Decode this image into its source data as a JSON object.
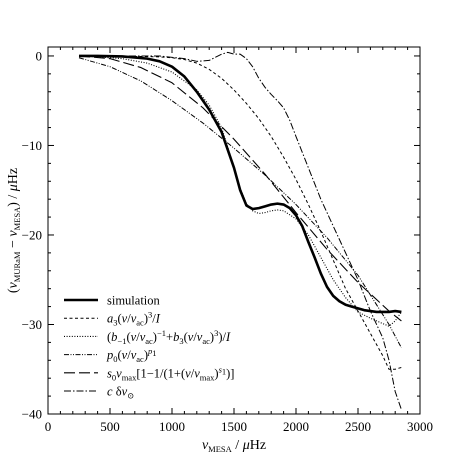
{
  "chart_data": {
    "type": "line",
    "xlabel": "ν_MESA / μHz",
    "ylabel": "(ν_MURaM − ν_MESA) / μHz",
    "xlim": [
      0,
      3000
    ],
    "ylim": [
      -40,
      1
    ],
    "x_ticks": [
      "0",
      "500",
      "1000",
      "1500",
      "2000",
      "2500",
      "3000"
    ],
    "y_ticks": [
      "0",
      "−10",
      "−20",
      "−30",
      "−40"
    ],
    "grid": false,
    "legend_position": "bottom-left",
    "legend": [
      "simulation",
      "a3(ν/νac)^3/I",
      "(b−1(ν/νac)^−1+b3(ν/νac)^3)/I",
      "p0(ν/νac)^p1",
      "s0νmax[1−1/(1+(ν/νmax)^s1)]",
      "c δν⊙"
    ],
    "series": [
      {
        "name": "simulation",
        "style": "solid-thick",
        "color": "#000000",
        "x": [
          250,
          400,
          600,
          800,
          900,
          1000,
          1100,
          1200,
          1300,
          1400,
          1450,
          1500,
          1550,
          1600,
          1650,
          1700,
          1750,
          1800,
          1850,
          1900,
          1950,
          2000,
          2050,
          2100,
          2150,
          2200,
          2250,
          2300,
          2350,
          2400,
          2450,
          2500,
          2550,
          2600,
          2650,
          2700,
          2750,
          2800,
          2850
        ],
        "y": [
          0,
          0,
          -0.05,
          -0.3,
          -0.6,
          -1.2,
          -2.3,
          -4.0,
          -6.0,
          -8.5,
          -10.5,
          -12.5,
          -15.0,
          -16.7,
          -17.1,
          -17.0,
          -16.8,
          -16.6,
          -16.5,
          -16.6,
          -17.0,
          -17.8,
          -19.0,
          -20.8,
          -22.5,
          -24.3,
          -25.8,
          -26.8,
          -27.4,
          -27.8,
          -28.0,
          -28.2,
          -28.4,
          -28.5,
          -28.6,
          -28.6,
          -28.6,
          -28.5,
          -28.6
        ]
      },
      {
        "name": "a3(ν/νac)^3/I",
        "style": "dashed-short",
        "color": "#000000",
        "x": [
          250,
          500,
          700,
          900,
          1000,
          1100,
          1200,
          1300,
          1400,
          1500,
          1600,
          1700,
          1800,
          1900,
          2000,
          2100,
          2200,
          2300,
          2400,
          2500,
          2600,
          2700,
          2750,
          2800,
          2850
        ],
        "y": [
          0,
          0,
          -0.05,
          -0.1,
          -0.2,
          -0.4,
          -0.8,
          -1.5,
          -2.5,
          -3.8,
          -5.3,
          -7.0,
          -9.0,
          -11.3,
          -13.8,
          -16.6,
          -19.6,
          -22.8,
          -26.0,
          -28.5,
          -31.0,
          -33.5,
          -35.0,
          -35.0,
          -34.8
        ]
      },
      {
        "name": "(b−1(ν/νac)^−1+b3(ν/νac)^3)/I",
        "style": "dotted",
        "color": "#000000",
        "x": [
          250,
          400,
          600,
          800,
          1000,
          1200,
          1300,
          1400,
          1450,
          1500,
          1550,
          1600,
          1650,
          1700,
          1750,
          1800,
          1850,
          1900,
          2000,
          2100,
          2200,
          2300,
          2400,
          2500,
          2600,
          2650,
          2700,
          2750,
          2800,
          2850
        ],
        "y": [
          0,
          -0.1,
          -0.3,
          -0.8,
          -1.8,
          -3.8,
          -5.5,
          -8.0,
          -10.2,
          -12.5,
          -14.8,
          -16.5,
          -17.3,
          -17.6,
          -17.5,
          -17.3,
          -17.2,
          -17.3,
          -18.2,
          -20.0,
          -22.5,
          -25.0,
          -27.0,
          -28.6,
          -29.3,
          -29.6,
          -29.9,
          -30.2,
          -29.6,
          -28.6
        ]
      },
      {
        "name": "p0(ν/νac)^p1",
        "style": "dash-dot-dot",
        "color": "#000000",
        "x": [
          250,
          500,
          750,
          1000,
          1250,
          1500,
          1750,
          2000,
          2250,
          2500,
          2750,
          2850
        ],
        "y": [
          -0.2,
          -1.2,
          -2.8,
          -5.0,
          -7.5,
          -10.3,
          -13.3,
          -16.6,
          -20.3,
          -24.5,
          -30.0,
          -32.6
        ]
      },
      {
        "name": "s0νmax[1−1/(1+(ν/νmax)^s1)]",
        "style": "dashed-long",
        "color": "#000000",
        "x": [
          250,
          500,
          750,
          1000,
          1250,
          1500,
          1750,
          2000,
          2250,
          2500,
          2750,
          2850
        ],
        "y": [
          0,
          -0.3,
          -1.3,
          -3.0,
          -5.8,
          -9.3,
          -13.2,
          -17.5,
          -21.6,
          -25.3,
          -28.5,
          -29.6
        ]
      },
      {
        "name": "c δν⊙",
        "style": "dash-dot",
        "color": "#000000",
        "x": [
          250,
          600,
          900,
          1100,
          1200,
          1300,
          1400,
          1450,
          1500,
          1550,
          1600,
          1650,
          1700,
          1750,
          1800,
          1850,
          1900,
          1950,
          2000,
          2100,
          2200,
          2300,
          2400,
          2500,
          2600,
          2700,
          2750,
          2800,
          2850
        ],
        "y": [
          0,
          0,
          0,
          -0.3,
          -0.6,
          -0.5,
          0.2,
          0.4,
          0.2,
          0.2,
          -0.3,
          -1.2,
          -2.5,
          -3.5,
          -4.3,
          -5.0,
          -5.8,
          -7.2,
          -9.0,
          -12.5,
          -16.0,
          -19.0,
          -22.0,
          -25.0,
          -28.5,
          -31.5,
          -34.0,
          -37.5,
          -39.5
        ]
      }
    ]
  }
}
